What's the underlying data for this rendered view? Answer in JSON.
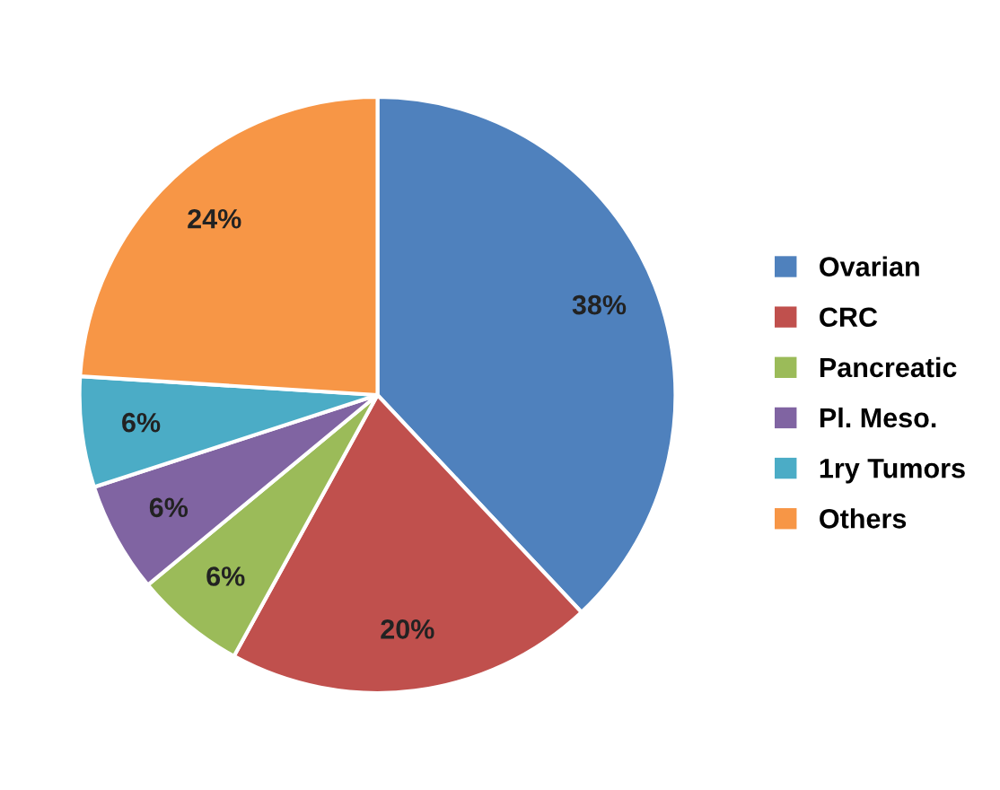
{
  "chart_data": {
    "type": "pie",
    "categories": [
      "Ovarian",
      "CRC",
      "Pancreatic",
      "Pl. Meso.",
      "1ry Tumors",
      "Others"
    ],
    "values": [
      38,
      20,
      6,
      6,
      6,
      24
    ],
    "value_labels": [
      "38%",
      "20%",
      "6%",
      "6%",
      "6%",
      "24%"
    ],
    "colors": [
      "#4f81bd",
      "#c0504d",
      "#9bbb59",
      "#8064a2",
      "#4bacc6",
      "#f79646"
    ],
    "legend": "right"
  }
}
